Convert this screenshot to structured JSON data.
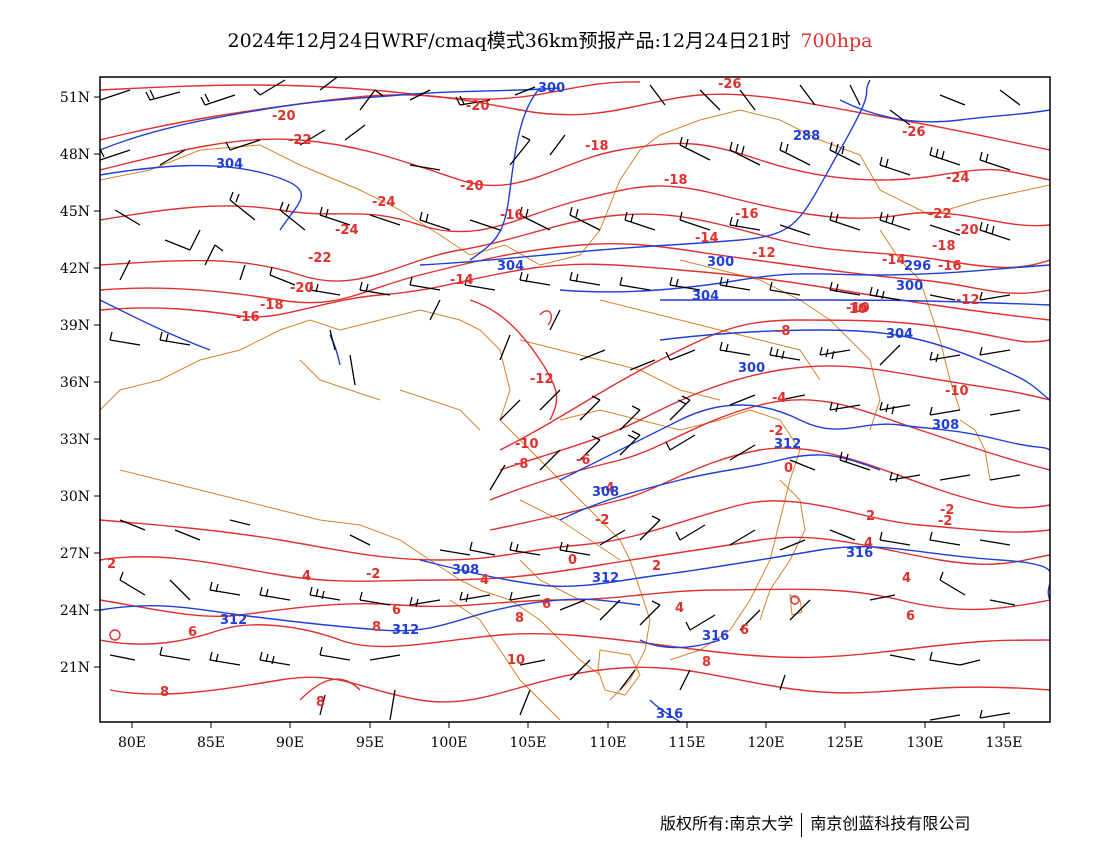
{
  "title": {
    "main": "2024年12月24日WRF/cmaq模式36km预报产品:12月24日21时",
    "level": "700hpa"
  },
  "footer": {
    "left": "版权所有:南京大学",
    "right": "南京创蓝科技有限公司"
  },
  "axes": {
    "lon_ticks": [
      "80E",
      "85E",
      "90E",
      "95E",
      "100E",
      "105E",
      "110E",
      "115E",
      "120E",
      "125E",
      "130E",
      "135E"
    ],
    "lat_ticks": [
      "51N",
      "48N",
      "45N",
      "42N",
      "39N",
      "36N",
      "33N",
      "30N",
      "27N",
      "24N",
      "21N"
    ]
  },
  "colors": {
    "temperature": "#e0302e",
    "geopotential": "#1f3fd8",
    "borders": "#d9822b",
    "barbs": "#000000"
  },
  "temperature_labels": [
    "-26",
    "-26",
    "-24",
    "-24",
    "-24",
    "-22",
    "-22",
    "-22",
    "-20",
    "-20",
    "-20",
    "-20",
    "-20",
    "-18",
    "-18",
    "-18",
    "-18",
    "-16",
    "-16",
    "-16",
    "-16",
    "-14",
    "-14",
    "-14",
    "-12",
    "-12",
    "-12",
    "-10",
    "-10",
    "-10",
    "-8",
    "-8",
    "-6",
    "-4",
    "-4",
    "-2",
    "-2",
    "-2",
    "-2",
    "-2",
    "0",
    "0",
    "2",
    "2",
    "2",
    "4",
    "4",
    "4",
    "4",
    "4",
    "6",
    "6",
    "6",
    "6",
    "6",
    "8",
    "8",
    "8",
    "8",
    "8",
    "10",
    "10"
  ],
  "geopotential_labels": [
    "300",
    "288",
    "304",
    "304",
    "300",
    "304",
    "304",
    "296",
    "300",
    "300",
    "308",
    "312",
    "308",
    "312",
    "312",
    "316",
    "316",
    "316",
    "308",
    "312"
  ]
}
